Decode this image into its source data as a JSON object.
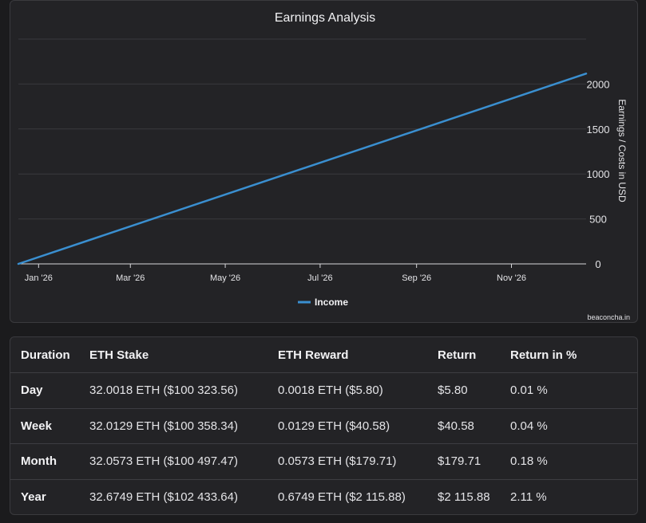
{
  "chart_data": {
    "type": "line",
    "title": "Earnings Analysis",
    "ylabel": "Earnings / Costs in USD",
    "xlabel": "",
    "x_ticks": [
      "Jan '26",
      "Mar '26",
      "May '26",
      "Jul '26",
      "Sep '26",
      "Nov '26"
    ],
    "y_ticks": [
      "0",
      "500",
      "1000",
      "1500",
      "2000"
    ],
    "ylim": [
      0,
      2500
    ],
    "xlim": [
      "2025-12-19",
      "2026-12-19"
    ],
    "legend_position": "bottom",
    "grid": true,
    "series": [
      {
        "name": "Income",
        "color": "#3a8fd0",
        "x": [
          "2025-12-19",
          "2026-12-19"
        ],
        "y": [
          0,
          2115.88
        ]
      }
    ],
    "credit": "beaconcha.in"
  },
  "colors": {
    "background": "#1b1b1d",
    "panel": "#232326",
    "grid": "#3a3a3e",
    "line": "#3a8fd0"
  },
  "table": {
    "headers": [
      "Duration",
      "ETH Stake",
      "ETH Reward",
      "Return",
      "Return in %"
    ],
    "rows": [
      [
        "Day",
        "32.0018 ETH ($100 323.56)",
        "0.0018 ETH ($5.80)",
        "$5.80",
        "0.01 %"
      ],
      [
        "Week",
        "32.0129 ETH ($100 358.34)",
        "0.0129 ETH ($40.58)",
        "$40.58",
        "0.04 %"
      ],
      [
        "Month",
        "32.0573 ETH ($100 497.47)",
        "0.0573 ETH ($179.71)",
        "$179.71",
        "0.18 %"
      ],
      [
        "Year",
        "32.6749 ETH ($102 433.64)",
        "0.6749 ETH ($2 115.88)",
        "$2 115.88",
        "2.11 %"
      ]
    ]
  }
}
